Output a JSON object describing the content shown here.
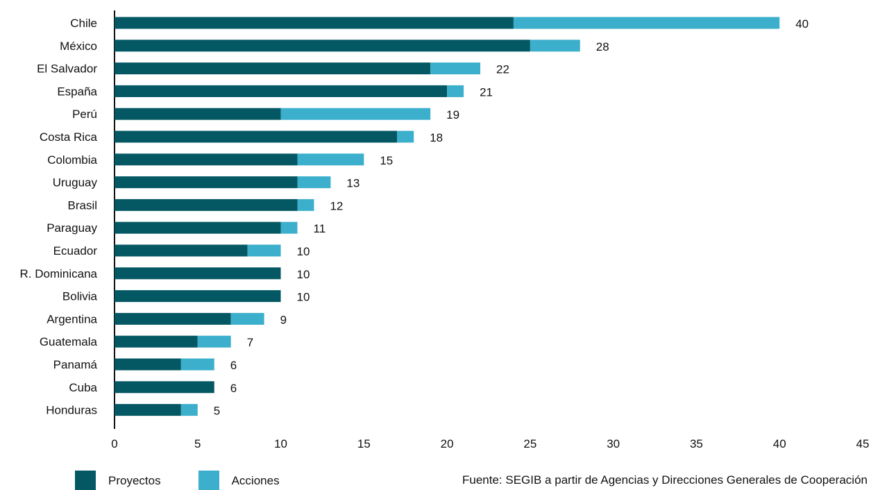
{
  "legend": {
    "items": [
      {
        "label": "Proyectos",
        "color": "#045863"
      },
      {
        "label": "Acciones",
        "color": "#3BAFCB"
      }
    ]
  },
  "source": "Fuente: SEGIB a partir de Agencias y Direcciones Generales de Cooperación",
  "chart_data": {
    "type": "bar",
    "orientation": "horizontal",
    "stacked": true,
    "categories": [
      "Chile",
      "México",
      "El Salvador",
      "España",
      "Perú",
      "Costa Rica",
      "Colombia",
      "Uruguay",
      "Brasil",
      "Paraguay",
      "Ecuador",
      "R. Dominicana",
      "Bolivia",
      "Argentina",
      "Guatemala",
      "Panamá",
      "Cuba",
      "Honduras"
    ],
    "series": [
      {
        "name": "Proyectos",
        "color": "#045863",
        "values": [
          24,
          25,
          19,
          20,
          10,
          17,
          11,
          11,
          11,
          10,
          8,
          10,
          10,
          7,
          5,
          4,
          6,
          4
        ]
      },
      {
        "name": "Acciones",
        "color": "#3BAFCB",
        "values": [
          16,
          3,
          3,
          1,
          9,
          1,
          4,
          2,
          1,
          1,
          2,
          0,
          0,
          2,
          2,
          2,
          0,
          1
        ]
      }
    ],
    "totals": [
      40,
      28,
      22,
      21,
      19,
      18,
      15,
      13,
      12,
      11,
      10,
      10,
      10,
      9,
      7,
      6,
      6,
      5
    ],
    "xlim": [
      0,
      45
    ],
    "xticks": [
      0,
      5,
      10,
      15,
      20,
      25,
      30,
      35,
      40,
      45
    ],
    "grid": false,
    "legend_position": "bottom-left",
    "title": "",
    "xlabel": "",
    "ylabel": ""
  }
}
